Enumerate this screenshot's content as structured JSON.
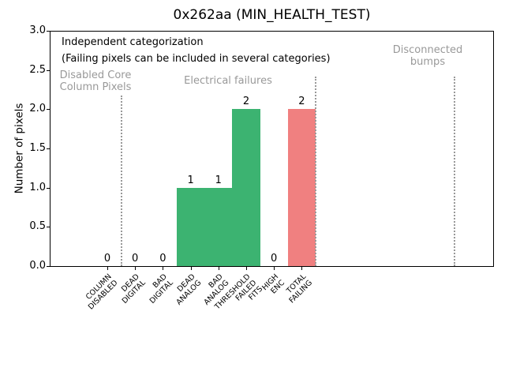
{
  "title": "0x262aa (MIN_HEALTH_TEST)",
  "annotations": {
    "line1": "Independent categorization",
    "line2": "(Failing pixels can be included in several categories)"
  },
  "sections": [
    {
      "text": "Disabled Core\nColumn Pixels"
    },
    {
      "text": "Electrical failures"
    },
    {
      "text": "Disconnected\nbumps"
    }
  ],
  "colors": {
    "bar_green": "#3cb371",
    "bar_red": "#f08080",
    "section_gray": "#999999"
  },
  "chart_data": {
    "type": "bar",
    "title": "0x262aa (MIN_HEALTH_TEST)",
    "xlabel": "",
    "ylabel": "Number of pixels",
    "ylim": [
      0,
      3
    ],
    "grid": false,
    "legend": null,
    "ytick_labels": [
      "0.0",
      "0.5",
      "1.0",
      "1.5",
      "2.0",
      "2.5",
      "3.0"
    ],
    "ytick_values": [
      0,
      0.5,
      1,
      1.5,
      2,
      2.5,
      3
    ],
    "categories": [
      "COLUMN\nDISABLED",
      "DEAD\nDIGITAL",
      "BAD\nDIGITAL",
      "DEAD\nANALOG",
      "BAD\nANALOG",
      "THRESHOLD\nFAILED\nFITS",
      "HIGH\nENC",
      "TOTAL\nFAILING"
    ],
    "values": [
      0,
      0,
      0,
      1,
      1,
      2,
      0,
      2
    ],
    "bar_colors": [
      "#3cb371",
      "#3cb371",
      "#3cb371",
      "#3cb371",
      "#3cb371",
      "#3cb371",
      "#3cb371",
      "#f08080"
    ],
    "value_labels": [
      "0",
      "0",
      "0",
      "1",
      "1",
      "2",
      "0",
      "2"
    ],
    "separators_x": [
      0.5,
      7.5,
      12.5
    ],
    "section_labels": [
      "Disabled Core Column Pixels",
      "Electrical failures",
      "Disconnected bumps"
    ]
  }
}
